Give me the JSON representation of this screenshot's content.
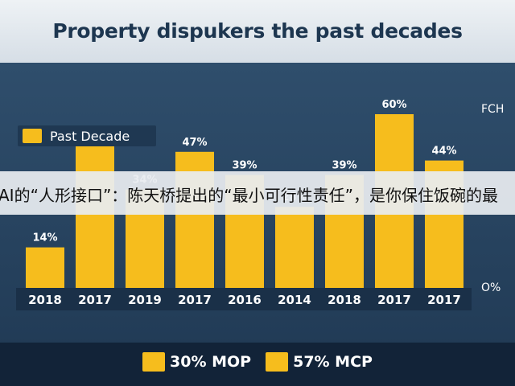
{
  "title": "Property dispukers the past decades",
  "overlay_caption": "AI的“人形接口”：陈天桥提出的“最小可行性责任”，是你保住饭碗的最",
  "legend": {
    "top_label": "Past Decade",
    "bottom_items": [
      "30% MOP",
      "57% MCP"
    ]
  },
  "right_axis": {
    "top_label": "FCH",
    "bottom_label": "O%"
  },
  "colors": {
    "bar": "#f6bd1d",
    "background": "#2a4866",
    "title": "#1d3650"
  },
  "chart_data": {
    "type": "bar",
    "title": "Property dispukers the past decades",
    "categories": [
      "2018",
      "2017",
      "2019",
      "2017",
      "2016",
      "2014",
      "2018",
      "2017",
      "2017"
    ],
    "series": [
      {
        "name": "Past Decade",
        "values": [
          14,
          49,
          34,
          47,
          39,
          28,
          39,
          60,
          44
        ],
        "labels": [
          "14%",
          "49%",
          "34%",
          "47%",
          "39%",
          "28%",
          "39%",
          "60%",
          "44%"
        ]
      }
    ],
    "ylim": [
      0,
      70
    ],
    "grid": false,
    "legend_position": "top-left"
  }
}
